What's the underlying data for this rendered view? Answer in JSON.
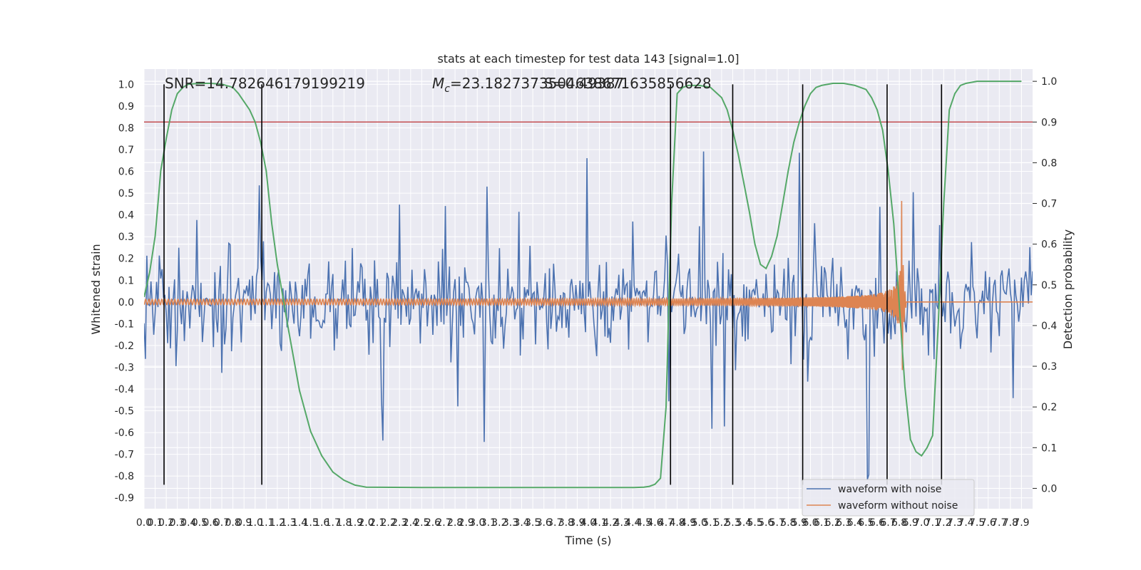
{
  "chart_data": {
    "type": "line",
    "title": "stats at each timestep for test data 143 [signal=1.0]",
    "xlabel": "Time (s)",
    "ylabel_left": "Whitened strain",
    "ylabel_right": "Detection probability",
    "xlim": [
      0.0,
      8.0
    ],
    "ylim_left": [
      -0.95,
      1.07
    ],
    "ylim_right": [
      -0.05,
      1.03
    ],
    "x_ticks": [
      0.0,
      0.1,
      0.2,
      0.3,
      0.4,
      0.5,
      0.6,
      0.7,
      0.8,
      0.9,
      1.0,
      1.1,
      1.2,
      1.3,
      1.4,
      1.5,
      1.6,
      1.7,
      1.8,
      1.9,
      2.0,
      2.1,
      2.2,
      2.3,
      2.4,
      2.5,
      2.6,
      2.7,
      2.8,
      2.9,
      3.0,
      3.1,
      3.2,
      3.3,
      3.4,
      3.5,
      3.6,
      3.7,
      3.8,
      3.9,
      4.0,
      4.1,
      4.2,
      4.3,
      4.4,
      4.5,
      4.6,
      4.7,
      4.8,
      4.9,
      5.0,
      5.1,
      5.2,
      5.3,
      5.4,
      5.5,
      5.6,
      5.7,
      5.8,
      5.9,
      6.0,
      6.1,
      6.2,
      6.3,
      6.4,
      6.5,
      6.6,
      6.7,
      6.8,
      6.9,
      7.0,
      7.1,
      7.2,
      7.3,
      7.4,
      7.5,
      7.6,
      7.7,
      7.8,
      7.9
    ],
    "y_ticks_left": [
      1.0,
      0.9,
      0.8,
      0.7,
      0.6,
      0.5,
      0.4,
      0.3,
      0.2,
      0.1,
      0.0,
      -0.1,
      -0.2,
      -0.3,
      -0.4,
      -0.5,
      -0.6,
      -0.7,
      -0.8,
      -0.9
    ],
    "y_ticks_right": [
      1.0,
      0.9,
      0.8,
      0.7,
      0.6,
      0.5,
      0.4,
      0.3,
      0.2,
      0.1,
      0.0
    ],
    "grid": true,
    "legend_position": "bottom-right",
    "annotations": {
      "snr": "SNR=14.782646179199219",
      "mc_prefix": "M",
      "mc_sub": "c",
      "mc_value": "=23.1827373504638671635856628",
      "overlap": "S=0.49387"
    },
    "threshold": {
      "value": 0.9,
      "axis": "right",
      "color": "#c44e52"
    },
    "vertical_lines": [
      0.18,
      1.06,
      4.74,
      5.3,
      5.93,
      6.69,
      7.18
    ],
    "noise_series": {
      "name": "waveform with noise",
      "color": "#4c72b0",
      "count": 640,
      "seed": 143
    },
    "clean_series": {
      "name": "waveform without noise",
      "color": "#dd8452",
      "t_merge": 6.82
    },
    "probability_series": {
      "color": "#55a868",
      "x": [
        0.0,
        0.05,
        0.1,
        0.15,
        0.2,
        0.25,
        0.3,
        0.35,
        0.4,
        0.5,
        0.6,
        0.7,
        0.8,
        0.85,
        0.9,
        0.95,
        1.0,
        1.05,
        1.1,
        1.15,
        1.2,
        1.3,
        1.4,
        1.5,
        1.6,
        1.7,
        1.8,
        1.9,
        2.0,
        2.5,
        3.0,
        3.5,
        4.0,
        4.4,
        4.5,
        4.55,
        4.6,
        4.65,
        4.7,
        4.75,
        4.8,
        4.85,
        4.9,
        5.0,
        5.1,
        5.2,
        5.25,
        5.3,
        5.35,
        5.4,
        5.45,
        5.5,
        5.55,
        5.6,
        5.65,
        5.7,
        5.75,
        5.8,
        5.85,
        5.9,
        5.95,
        6.0,
        6.05,
        6.1,
        6.2,
        6.3,
        6.4,
        6.5,
        6.55,
        6.6,
        6.65,
        6.7,
        6.75,
        6.8,
        6.85,
        6.9,
        6.95,
        7.0,
        7.05,
        7.1,
        7.15,
        7.2,
        7.25,
        7.3,
        7.35,
        7.4,
        7.5,
        7.6,
        7.7,
        7.8,
        7.9
      ],
      "y": [
        0.47,
        0.53,
        0.62,
        0.78,
        0.86,
        0.93,
        0.97,
        0.985,
        0.993,
        0.995,
        0.995,
        0.993,
        0.985,
        0.97,
        0.95,
        0.93,
        0.9,
        0.85,
        0.78,
        0.65,
        0.55,
        0.39,
        0.24,
        0.14,
        0.08,
        0.04,
        0.02,
        0.008,
        0.003,
        0.002,
        0.002,
        0.002,
        0.002,
        0.002,
        0.003,
        0.005,
        0.01,
        0.025,
        0.2,
        0.7,
        0.97,
        0.985,
        0.99,
        0.99,
        0.985,
        0.96,
        0.93,
        0.88,
        0.82,
        0.75,
        0.68,
        0.6,
        0.55,
        0.54,
        0.57,
        0.62,
        0.7,
        0.78,
        0.85,
        0.9,
        0.94,
        0.97,
        0.985,
        0.99,
        0.995,
        0.995,
        0.99,
        0.98,
        0.96,
        0.93,
        0.88,
        0.78,
        0.65,
        0.45,
        0.25,
        0.12,
        0.09,
        0.08,
        0.1,
        0.13,
        0.4,
        0.7,
        0.93,
        0.97,
        0.99,
        0.995,
        1.0,
        1.0,
        1.0,
        1.0,
        1.0
      ]
    }
  }
}
